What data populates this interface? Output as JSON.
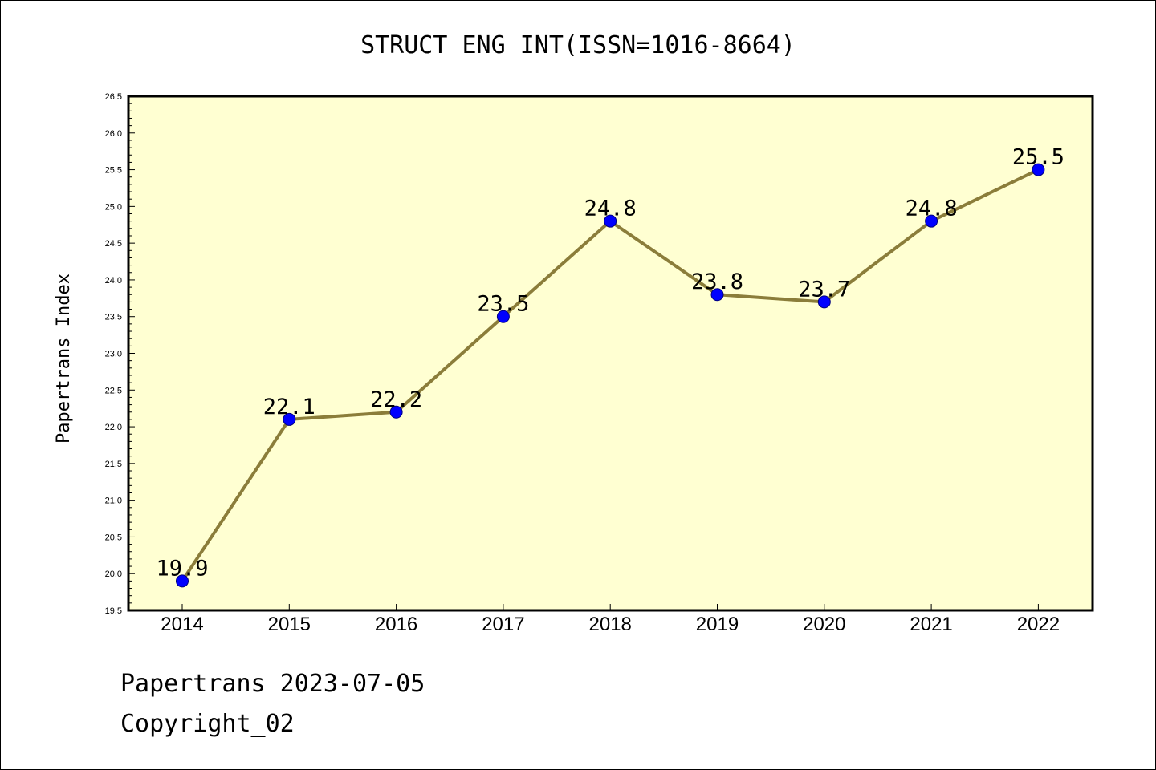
{
  "chart_data": {
    "type": "line",
    "title": "STRUCT ENG INT(ISSN=1016-8664)",
    "xlabel": "",
    "ylabel": "Papertrans Index",
    "categories": [
      "2014",
      "2015",
      "2016",
      "2017",
      "2018",
      "2019",
      "2020",
      "2021",
      "2022"
    ],
    "series": [
      {
        "values": [
          19.9,
          22.1,
          22.2,
          23.5,
          24.8,
          23.8,
          23.7,
          24.8,
          25.5
        ],
        "labels": [
          "19.9",
          "22.1",
          "22.2",
          "23.5",
          "24.8",
          "23.8",
          "23.7",
          "24.8",
          "25.5"
        ]
      }
    ],
    "ylim": [
      19.5,
      26.5
    ],
    "yticks": [
      "19.5",
      "20.0",
      "20.5",
      "21.0",
      "21.5",
      "22.0",
      "22.5",
      "23.0",
      "23.5",
      "24.0",
      "24.5",
      "25.0",
      "25.5",
      "26.0",
      "26.5"
    ],
    "grid": false,
    "legend": "none",
    "colors": {
      "plot_background": "#ffffd2",
      "line": "#8b7d3a",
      "marker": "#0000ff",
      "axis": "#000000"
    }
  },
  "footer": {
    "date_text": "Papertrans 2023-07-05",
    "copyright_text": "Copyright_02"
  }
}
